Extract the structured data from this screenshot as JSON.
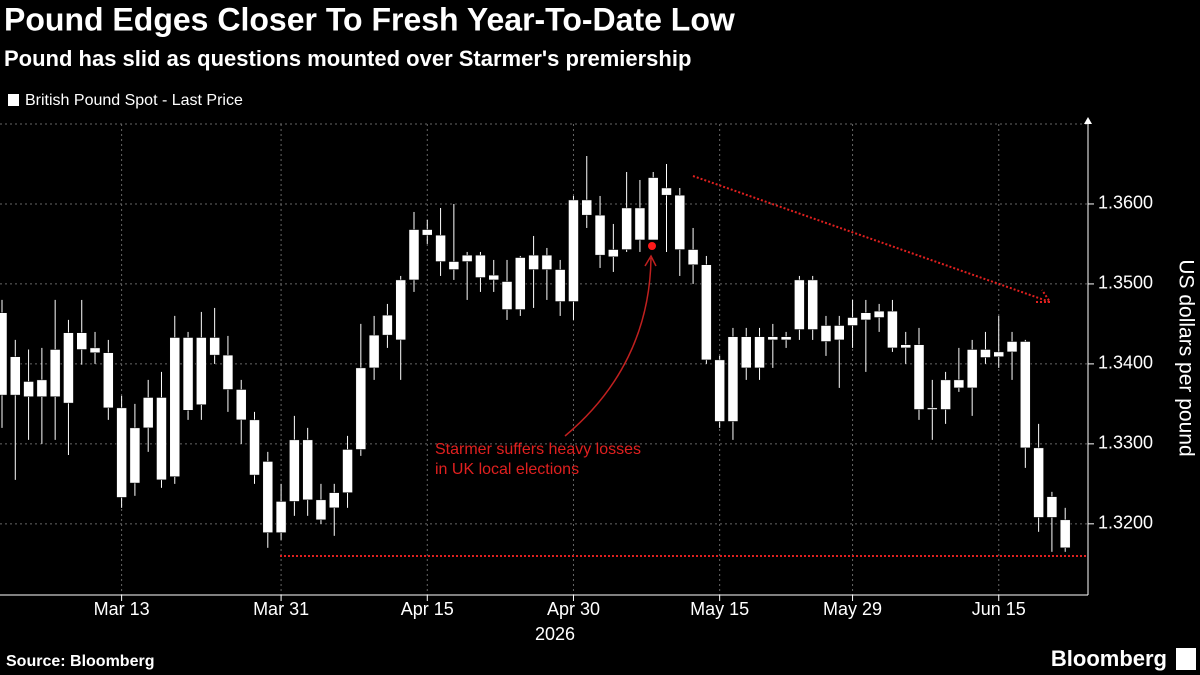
{
  "chart_data": {
    "type": "candlestick",
    "title": "Pound Edges Closer To Fresh Year-To-Date Low",
    "subtitle": "Pound has slid as questions mounted over Starmer's premiership",
    "y_axis_label": "US dollars per pound",
    "x_year_label": "2026",
    "annotation": [
      "Starmer suffers heavy losses",
      "in UK local elections"
    ],
    "source": "Source: Bloomberg",
    "brand": "Bloomberg",
    "ylim": [
      1.3111,
      1.37
    ],
    "yticks": [
      {
        "value": 1.32,
        "label": "1.3200"
      },
      {
        "value": 1.33,
        "label": "1.3300"
      },
      {
        "value": 1.34,
        "label": "1.3400"
      },
      {
        "value": 1.35,
        "label": "1.3500"
      },
      {
        "value": 1.36,
        "label": "1.3600"
      }
    ],
    "grid": true,
    "categories": [
      null,
      null,
      null,
      null,
      null,
      null,
      null,
      null,
      null,
      "Mar 13",
      null,
      null,
      null,
      null,
      null,
      null,
      null,
      null,
      null,
      null,
      null,
      "Mar 31",
      null,
      null,
      null,
      null,
      null,
      null,
      null,
      null,
      null,
      null,
      "Apr 15",
      null,
      null,
      null,
      null,
      null,
      null,
      null,
      null,
      null,
      null,
      "Apr 30",
      null,
      null,
      null,
      null,
      null,
      null,
      null,
      null,
      null,
      null,
      "May 15",
      null,
      null,
      null,
      null,
      null,
      null,
      null,
      null,
      null,
      "May 29",
      null,
      null,
      null,
      null,
      null,
      null,
      null,
      null,
      null,
      null,
      "Jun 15",
      null,
      null,
      null,
      null,
      null
    ],
    "series": [
      {
        "name": "British Pound Spot - Last Price",
        "color": "#ffffff",
        "open": [
          1.3464,
          1.3361,
          1.3378,
          1.3359,
          1.3359,
          1.3351,
          1.3439,
          1.342,
          1.3414,
          1.3345,
          1.3251,
          1.332,
          1.3358,
          1.3259,
          1.3433,
          1.3349,
          1.3433,
          1.3411,
          1.3368,
          1.333,
          1.3278,
          1.3189,
          1.3228,
          1.3305,
          1.323,
          1.322,
          1.3239,
          1.3293,
          1.3395,
          1.3436,
          1.343,
          1.3505,
          1.3568,
          1.3561,
          1.3528,
          1.3528,
          1.3536,
          1.3511,
          1.3503,
          1.3468,
          1.3518,
          1.3536,
          1.3518,
          1.3478,
          1.3605,
          1.3586,
          1.3534,
          1.3543,
          1.3595,
          1.3555,
          1.362,
          1.3611,
          1.3543,
          1.3524,
          1.3405,
          1.3328,
          1.3434,
          1.3395,
          1.3434,
          1.343,
          1.3443,
          1.3505,
          1.3448,
          1.343,
          1.3448,
          1.3455,
          1.3466,
          1.3466,
          1.3424,
          1.3424,
          1.3345,
          1.3343,
          1.338,
          1.337,
          1.3418,
          1.3409,
          1.3415,
          1.3428,
          1.3295,
          1.3208,
          1.3205
        ],
        "high": [
          1.348,
          1.343,
          1.3418,
          1.342,
          1.348,
          1.3455,
          1.348,
          1.344,
          1.343,
          1.336,
          1.335,
          1.338,
          1.339,
          1.346,
          1.344,
          1.3465,
          1.347,
          1.3435,
          1.338,
          1.334,
          1.329,
          1.325,
          1.3335,
          1.332,
          1.325,
          1.325,
          1.331,
          1.345,
          1.346,
          1.3475,
          1.351,
          1.359,
          1.358,
          1.3595,
          1.36,
          1.354,
          1.354,
          1.353,
          1.353,
          1.3535,
          1.356,
          1.3545,
          1.353,
          1.361,
          1.366,
          1.361,
          1.3575,
          1.364,
          1.363,
          1.364,
          1.365,
          1.362,
          1.357,
          1.3535,
          1.341,
          1.3445,
          1.3445,
          1.3445,
          1.345,
          1.344,
          1.351,
          1.351,
          1.346,
          1.346,
          1.348,
          1.348,
          1.3475,
          1.348,
          1.344,
          1.3445,
          1.338,
          1.339,
          1.342,
          1.343,
          1.344,
          1.346,
          1.344,
          1.343,
          1.3325,
          1.324,
          1.322
        ],
        "low": [
          1.332,
          1.3255,
          1.3305,
          1.33,
          1.3305,
          1.3286,
          1.3399,
          1.34,
          1.333,
          1.322,
          1.3235,
          1.329,
          1.3245,
          1.325,
          1.333,
          1.333,
          1.34,
          1.334,
          1.33,
          1.325,
          1.317,
          1.318,
          1.321,
          1.321,
          1.32,
          1.3185,
          1.322,
          1.3285,
          1.338,
          1.342,
          1.338,
          1.349,
          1.355,
          1.351,
          1.3505,
          1.348,
          1.349,
          1.349,
          1.3455,
          1.346,
          1.347,
          1.348,
          1.346,
          1.3455,
          1.357,
          1.352,
          1.3515,
          1.354,
          1.354,
          1.356,
          1.354,
          1.351,
          1.35,
          1.34,
          1.332,
          1.3305,
          1.338,
          1.338,
          1.3395,
          1.342,
          1.343,
          1.343,
          1.341,
          1.337,
          1.342,
          1.339,
          1.344,
          1.3415,
          1.34,
          1.333,
          1.3305,
          1.3325,
          1.3365,
          1.3335,
          1.34,
          1.3395,
          1.338,
          1.327,
          1.319,
          1.3165,
          1.3165
        ],
        "close": [
          1.3361,
          1.3409,
          1.3359,
          1.338,
          1.3418,
          1.3439,
          1.3418,
          1.3414,
          1.3345,
          1.3233,
          1.332,
          1.3358,
          1.3255,
          1.3433,
          1.3342,
          1.3433,
          1.3411,
          1.3368,
          1.333,
          1.3261,
          1.3189,
          1.3228,
          1.3305,
          1.323,
          1.3205,
          1.3239,
          1.3293,
          1.3395,
          1.3436,
          1.3461,
          1.3505,
          1.3568,
          1.3561,
          1.3528,
          1.3518,
          1.3536,
          1.3508,
          1.3505,
          1.3468,
          1.3533,
          1.3536,
          1.3518,
          1.3478,
          1.3605,
          1.3586,
          1.3536,
          1.3543,
          1.3595,
          1.3555,
          1.3633,
          1.3611,
          1.3543,
          1.3524,
          1.3405,
          1.3328,
          1.3434,
          1.3395,
          1.3434,
          1.343,
          1.3434,
          1.3505,
          1.3443,
          1.3428,
          1.3448,
          1.3458,
          1.3464,
          1.3458,
          1.342,
          1.342,
          1.3343,
          1.3343,
          1.338,
          1.337,
          1.3418,
          1.3408,
          1.3415,
          1.3428,
          1.3295,
          1.3208,
          1.3234,
          1.317
        ]
      }
    ]
  }
}
